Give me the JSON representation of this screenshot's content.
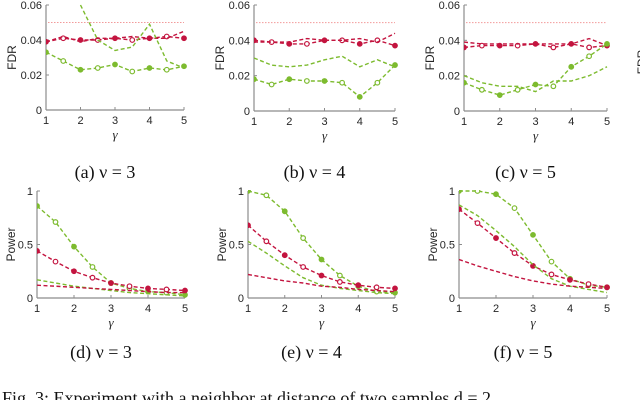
{
  "colors": {
    "red": "#c3143f",
    "green": "#7dbb2f",
    "threshold": "#f29a9a",
    "axis": "#8c8c8c"
  },
  "figure_caption": "Fig. 3:  Experiment with a neighbor at distance of two samples d = 2",
  "chart_data": [
    {
      "id": "a",
      "type": "line",
      "caption": "(a)   ν = 3",
      "ylabel": "FDR",
      "xlabel": "γ",
      "xlim": [
        1,
        5
      ],
      "ylim": [
        0,
        0.06
      ],
      "xticks": [
        "1",
        "2",
        "3",
        "4",
        "5"
      ],
      "yticks": [
        "0",
        "0.02",
        "0.04",
        "0.06"
      ],
      "threshold": 0.05,
      "x": [
        1,
        1.5,
        2,
        2.5,
        3,
        3.5,
        4,
        4.5,
        5
      ],
      "series": [
        {
          "name": "red-markers",
          "color": "red",
          "markers": true,
          "values": [
            0.039,
            0.041,
            0.04,
            0.04,
            0.041,
            0.04,
            0.041,
            0.042,
            0.041
          ]
        },
        {
          "name": "red-dashed",
          "color": "red",
          "markers": false,
          "values": [
            0.039,
            0.042,
            0.039,
            0.041,
            0.041,
            0.042,
            0.041,
            0.041,
            0.045
          ]
        },
        {
          "name": "green-markers",
          "color": "green",
          "markers": true,
          "values": [
            0.033,
            0.028,
            0.023,
            0.024,
            0.026,
            0.022,
            0.024,
            0.023,
            0.025
          ]
        },
        {
          "name": "green-dashed",
          "color": "green",
          "markers": false,
          "values": [
            null,
            null,
            0.06,
            0.04,
            0.034,
            0.036,
            0.049,
            0.028,
            0.024
          ]
        }
      ]
    },
    {
      "id": "b",
      "type": "line",
      "caption": "(b)   ν = 4",
      "ylabel": "FDR",
      "xlabel": "γ",
      "xlim": [
        1,
        5
      ],
      "ylim": [
        0,
        0.06
      ],
      "xticks": [
        "1",
        "2",
        "3",
        "4",
        "5"
      ],
      "yticks": [
        "0",
        "0.02",
        "0.04",
        "0.06"
      ],
      "threshold": 0.05,
      "x": [
        1,
        1.5,
        2,
        2.5,
        3,
        3.5,
        4,
        4.5,
        5
      ],
      "series": [
        {
          "name": "red-markers",
          "color": "red",
          "markers": true,
          "values": [
            0.04,
            0.039,
            0.038,
            0.038,
            0.04,
            0.04,
            0.038,
            0.04,
            0.037
          ]
        },
        {
          "name": "red-dashed",
          "color": "red",
          "markers": false,
          "values": [
            0.039,
            0.039,
            0.039,
            0.041,
            0.04,
            0.04,
            0.041,
            0.039,
            0.044
          ]
        },
        {
          "name": "green-markers",
          "color": "green",
          "markers": true,
          "values": [
            0.018,
            0.015,
            0.018,
            0.017,
            0.017,
            0.016,
            0.008,
            0.016,
            0.026
          ]
        },
        {
          "name": "green-dashed",
          "color": "green",
          "markers": false,
          "values": [
            0.03,
            0.026,
            0.025,
            0.026,
            0.029,
            0.031,
            0.025,
            0.029,
            0.025
          ]
        }
      ]
    },
    {
      "id": "c",
      "type": "line",
      "caption": "(c)   ν = 5",
      "ylabel": "FDR",
      "xlabel": "γ",
      "xlim": [
        1,
        5
      ],
      "ylim": [
        0,
        0.06
      ],
      "xticks": [
        "1",
        "2",
        "3",
        "4",
        "5"
      ],
      "yticks": [
        "0",
        "0.02",
        "0.04",
        "0.06"
      ],
      "threshold": 0.05,
      "x": [
        1,
        1.5,
        2,
        2.5,
        3,
        3.5,
        4,
        4.5,
        5
      ],
      "series": [
        {
          "name": "red-markers",
          "color": "red",
          "markers": true,
          "values": [
            0.036,
            0.037,
            0.037,
            0.037,
            0.038,
            0.036,
            0.038,
            0.036,
            0.037
          ]
        },
        {
          "name": "red-dashed",
          "color": "red",
          "markers": false,
          "values": [
            0.039,
            0.038,
            0.038,
            0.038,
            0.038,
            0.038,
            0.038,
            0.041,
            0.037
          ]
        },
        {
          "name": "green-markers",
          "color": "green",
          "markers": true,
          "values": [
            0.016,
            0.012,
            0.009,
            0.012,
            0.015,
            0.014,
            0.025,
            0.031,
            0.038
          ]
        },
        {
          "name": "green-dashed",
          "color": "green",
          "markers": false,
          "values": [
            0.02,
            0.016,
            0.014,
            0.014,
            0.011,
            0.017,
            0.017,
            0.02,
            0.025
          ]
        }
      ]
    },
    {
      "id": "d",
      "type": "line",
      "caption": "(d)   ν = 3",
      "ylabel": "Power",
      "xlabel": "γ",
      "xlim": [
        1,
        5
      ],
      "ylim": [
        0,
        1
      ],
      "xticks": [
        "1",
        "2",
        "3",
        "4",
        "5"
      ],
      "yticks": [
        "0",
        "0.5",
        "1"
      ],
      "x": [
        1,
        1.5,
        2,
        2.5,
        3,
        3.5,
        4,
        4.5,
        5
      ],
      "series": [
        {
          "name": "green-markers",
          "color": "green",
          "markers": true,
          "values": [
            0.86,
            0.71,
            0.48,
            0.29,
            0.14,
            0.09,
            0.06,
            0.05,
            0.03
          ]
        },
        {
          "name": "red-markers",
          "color": "red",
          "markers": true,
          "values": [
            0.44,
            0.34,
            0.25,
            0.19,
            0.14,
            0.11,
            0.09,
            0.08,
            0.07
          ]
        },
        {
          "name": "green-dashed",
          "color": "green",
          "markers": false,
          "values": [
            0.17,
            0.14,
            0.11,
            0.09,
            0.07,
            0.05,
            0.04,
            0.03,
            0.02
          ]
        },
        {
          "name": "red-dashed",
          "color": "red",
          "markers": false,
          "values": [
            0.12,
            0.11,
            0.1,
            0.09,
            0.08,
            0.07,
            0.06,
            0.05,
            0.05
          ]
        }
      ]
    },
    {
      "id": "e",
      "type": "line",
      "caption": "(e)   ν = 4",
      "ylabel": "Power",
      "xlabel": "γ",
      "xlim": [
        1,
        5
      ],
      "ylim": [
        0,
        1
      ],
      "xticks": [
        "1",
        "2",
        "3",
        "4",
        "5"
      ],
      "yticks": [
        "0",
        "0.5",
        "1"
      ],
      "x": [
        1,
        1.5,
        2,
        2.5,
        3,
        3.5,
        4,
        4.5,
        5
      ],
      "series": [
        {
          "name": "green-markers",
          "color": "green",
          "markers": true,
          "values": [
            1.0,
            0.96,
            0.81,
            0.56,
            0.36,
            0.21,
            0.11,
            0.06,
            0.05
          ]
        },
        {
          "name": "red-markers",
          "color": "red",
          "markers": true,
          "values": [
            0.68,
            0.53,
            0.4,
            0.29,
            0.21,
            0.15,
            0.12,
            0.1,
            0.09
          ]
        },
        {
          "name": "green-dashed",
          "color": "green",
          "markers": false,
          "values": [
            0.53,
            0.42,
            0.3,
            0.19,
            0.12,
            0.09,
            0.07,
            0.05,
            0.04
          ]
        },
        {
          "name": "red-dashed",
          "color": "red",
          "markers": false,
          "values": [
            0.22,
            0.19,
            0.16,
            0.14,
            0.11,
            0.1,
            0.08,
            0.07,
            0.06
          ]
        }
      ]
    },
    {
      "id": "f",
      "type": "line",
      "caption": "(f)   ν = 5",
      "ylabel": "Power",
      "xlabel": "γ",
      "xlim": [
        1,
        5
      ],
      "ylim": [
        0,
        1
      ],
      "xticks": [
        "1",
        "2",
        "3",
        "4",
        "5"
      ],
      "yticks": [
        "0",
        "0.5",
        "1"
      ],
      "x": [
        1,
        1.5,
        2,
        2.5,
        3,
        3.5,
        4,
        4.5,
        5
      ],
      "series": [
        {
          "name": "green-markers",
          "color": "green",
          "markers": true,
          "values": [
            1.0,
            1.0,
            0.97,
            0.84,
            0.59,
            0.34,
            0.18,
            0.12,
            0.1
          ]
        },
        {
          "name": "red-markers",
          "color": "red",
          "markers": true,
          "values": [
            0.83,
            0.7,
            0.56,
            0.42,
            0.3,
            0.22,
            0.17,
            0.13,
            0.1
          ]
        },
        {
          "name": "green-dashed",
          "color": "green",
          "markers": false,
          "values": [
            0.87,
            0.77,
            0.63,
            0.48,
            0.31,
            0.18,
            0.11,
            0.08,
            0.05
          ]
        },
        {
          "name": "red-dashed",
          "color": "red",
          "markers": false,
          "values": [
            0.36,
            0.3,
            0.25,
            0.2,
            0.16,
            0.13,
            0.11,
            0.1,
            0.09
          ]
        }
      ]
    }
  ]
}
